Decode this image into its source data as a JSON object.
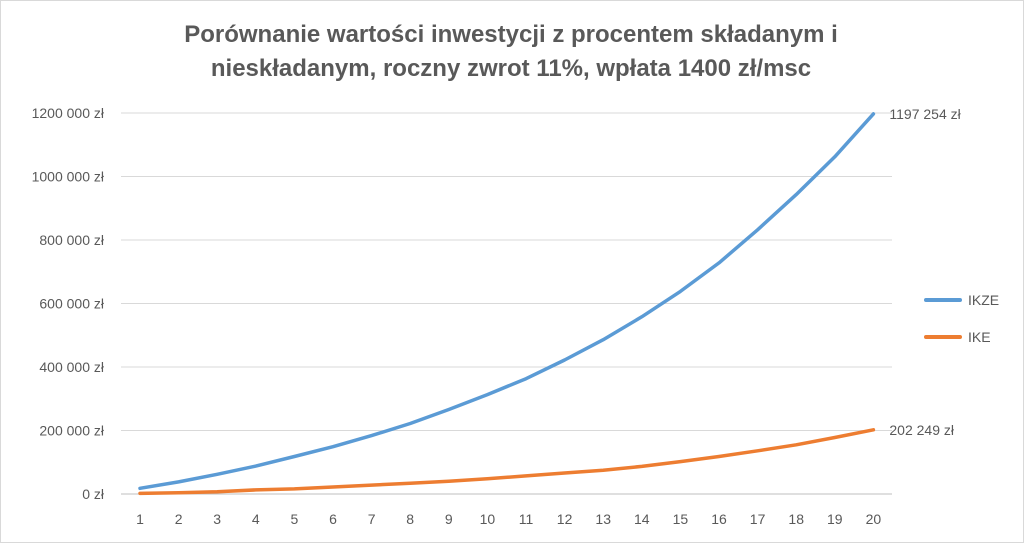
{
  "chart_data": {
    "type": "line",
    "title_line1": "Porównanie wartości inwestycji z procentem składanym i",
    "title_line2": "nieskładanym, roczny zwrot 11%, wpłata 1400 zł/msc",
    "x": [
      1,
      2,
      3,
      4,
      5,
      6,
      7,
      8,
      9,
      10,
      11,
      12,
      13,
      14,
      15,
      16,
      17,
      18,
      19,
      20
    ],
    "ylim": [
      0,
      1200000
    ],
    "y_ticks": [
      0,
      200000,
      400000,
      600000,
      800000,
      1000000,
      1200000
    ],
    "y_tick_labels": [
      "0 zł",
      "200 000 zł",
      "400 000 zł",
      "600 000 zł",
      "800 000 zł",
      "1000 000 zł",
      "1200 000 zł"
    ],
    "grid": true,
    "legend_position": "right",
    "series": [
      {
        "name": "IKZE",
        "color": "#5b9bd5",
        "values": [
          18000,
          38000,
          62000,
          88000,
          118000,
          149000,
          184000,
          222000,
          266000,
          313000,
          363000,
          422000,
          486000,
          558000,
          638000,
          728000,
          832000,
          943000,
          1062000,
          1197254
        ],
        "end_label": "1197 254 zł"
      },
      {
        "name": "IKE",
        "color": "#ed7d31",
        "values": [
          2000,
          4000,
          7000,
          13000,
          16000,
          22000,
          28000,
          34000,
          40000,
          48000,
          57000,
          66000,
          75000,
          87000,
          102000,
          118000,
          136000,
          155000,
          178000,
          202249
        ],
        "end_label": "202 249 zł"
      }
    ]
  }
}
